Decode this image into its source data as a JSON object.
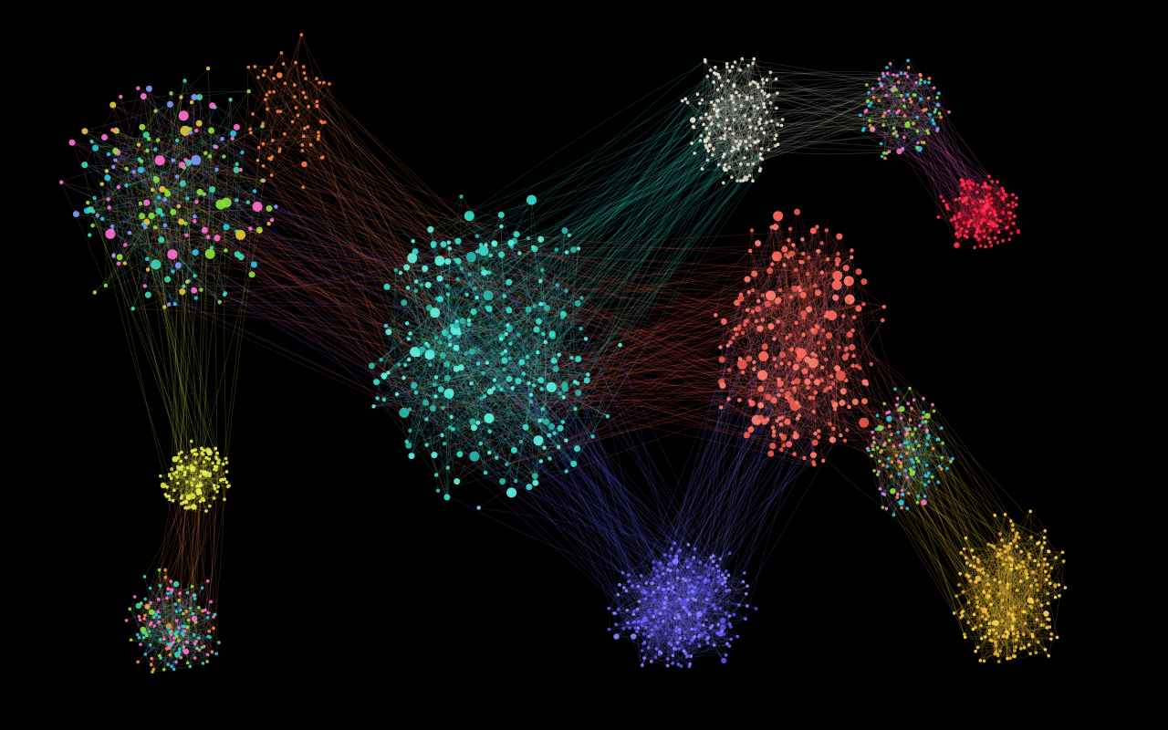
{
  "background_color": "#000000",
  "clusters": [
    {
      "id": "multicolor-topleft",
      "palette": [
        "#29c8e8",
        "#8be03a",
        "#ff6fd1",
        "#e3c43c",
        "#3fd6b0",
        "#7f9cff"
      ],
      "nodes": 190,
      "edge_density": 0.06
    },
    {
      "id": "orange-topleft",
      "palette": [
        "#ff8a4a",
        "#ff7b3a"
      ],
      "nodes": 70,
      "edge_density": 0.1
    },
    {
      "id": "teal-center",
      "palette": [
        "#35e0cc",
        "#5ff2e0",
        "#2ab8aa"
      ],
      "nodes": 280,
      "edge_density": 0.05
    },
    {
      "id": "beige-top",
      "palette": [
        "#d9d4c2",
        "#ece6d4"
      ],
      "nodes": 170,
      "edge_density": 0.08
    },
    {
      "id": "multicolor-topright",
      "palette": [
        "#29c8e8",
        "#ff8a4a",
        "#ff6fd1",
        "#8be03a"
      ],
      "nodes": 110,
      "edge_density": 0.1
    },
    {
      "id": "red-topright",
      "palette": [
        "#ff1a3d",
        "#ff3355"
      ],
      "nodes": 150,
      "edge_density": 0.1
    },
    {
      "id": "salmon-center-right",
      "palette": [
        "#ff6a5e",
        "#ff8070",
        "#e85a50"
      ],
      "nodes": 260,
      "edge_density": 0.05
    },
    {
      "id": "yellow-left",
      "palette": [
        "#d6e03a",
        "#e8ef55"
      ],
      "nodes": 120,
      "edge_density": 0.1
    },
    {
      "id": "multicolor-bottomleft",
      "palette": [
        "#29c8e8",
        "#ff8a4a",
        "#ff6fd1",
        "#8be03a",
        "#3fd6b0"
      ],
      "nodes": 150,
      "edge_density": 0.1
    },
    {
      "id": "blue-bottom",
      "palette": [
        "#6a64ff",
        "#8a84ff",
        "#5750e6"
      ],
      "nodes": 260,
      "edge_density": 0.07
    },
    {
      "id": "multicolor-right",
      "palette": [
        "#29c8e8",
        "#ff8a4a",
        "#ff6fd1",
        "#8be03a"
      ],
      "nodes": 130,
      "edge_density": 0.1
    },
    {
      "id": "gold-bottomright",
      "palette": [
        "#f0c23a",
        "#ffd24a",
        "#d9a92c"
      ],
      "nodes": 230,
      "edge_density": 0.07
    }
  ],
  "bridges": [
    {
      "from": "multicolor-topleft",
      "to": "teal-center",
      "color": "#ff6a5e",
      "count": 90
    },
    {
      "from": "orange-topleft",
      "to": "teal-center",
      "color": "#ff8a4a",
      "count": 50
    },
    {
      "from": "teal-center",
      "to": "beige-top",
      "color": "#35e0cc",
      "count": 120
    },
    {
      "from": "teal-center",
      "to": "salmon-center-right",
      "color": "#ff5a4e",
      "count": 140
    },
    {
      "from": "beige-top",
      "to": "multicolor-topright",
      "color": "#d9d4c2",
      "count": 60
    },
    {
      "from": "multicolor-topright",
      "to": "red-topright",
      "color": "#ff6fd1",
      "count": 50
    },
    {
      "from": "multicolor-topleft",
      "to": "yellow-left",
      "color": "#e8ef55",
      "count": 40
    },
    {
      "from": "yellow-left",
      "to": "multicolor-bottomleft",
      "color": "#ff8a4a",
      "count": 40
    },
    {
      "from": "teal-center",
      "to": "blue-bottom",
      "color": "#6a64ff",
      "count": 90
    },
    {
      "from": "salmon-center-right",
      "to": "blue-bottom",
      "color": "#7a74ff",
      "count": 70
    },
    {
      "from": "salmon-center-right",
      "to": "multicolor-right",
      "color": "#ff6a5e",
      "count": 50
    },
    {
      "from": "multicolor-right",
      "to": "gold-bottomright",
      "color": "#f0c23a",
      "count": 80
    },
    {
      "from": "multicolor-topleft",
      "to": "teal-center",
      "color": "#6a64ff",
      "count": 30
    }
  ]
}
